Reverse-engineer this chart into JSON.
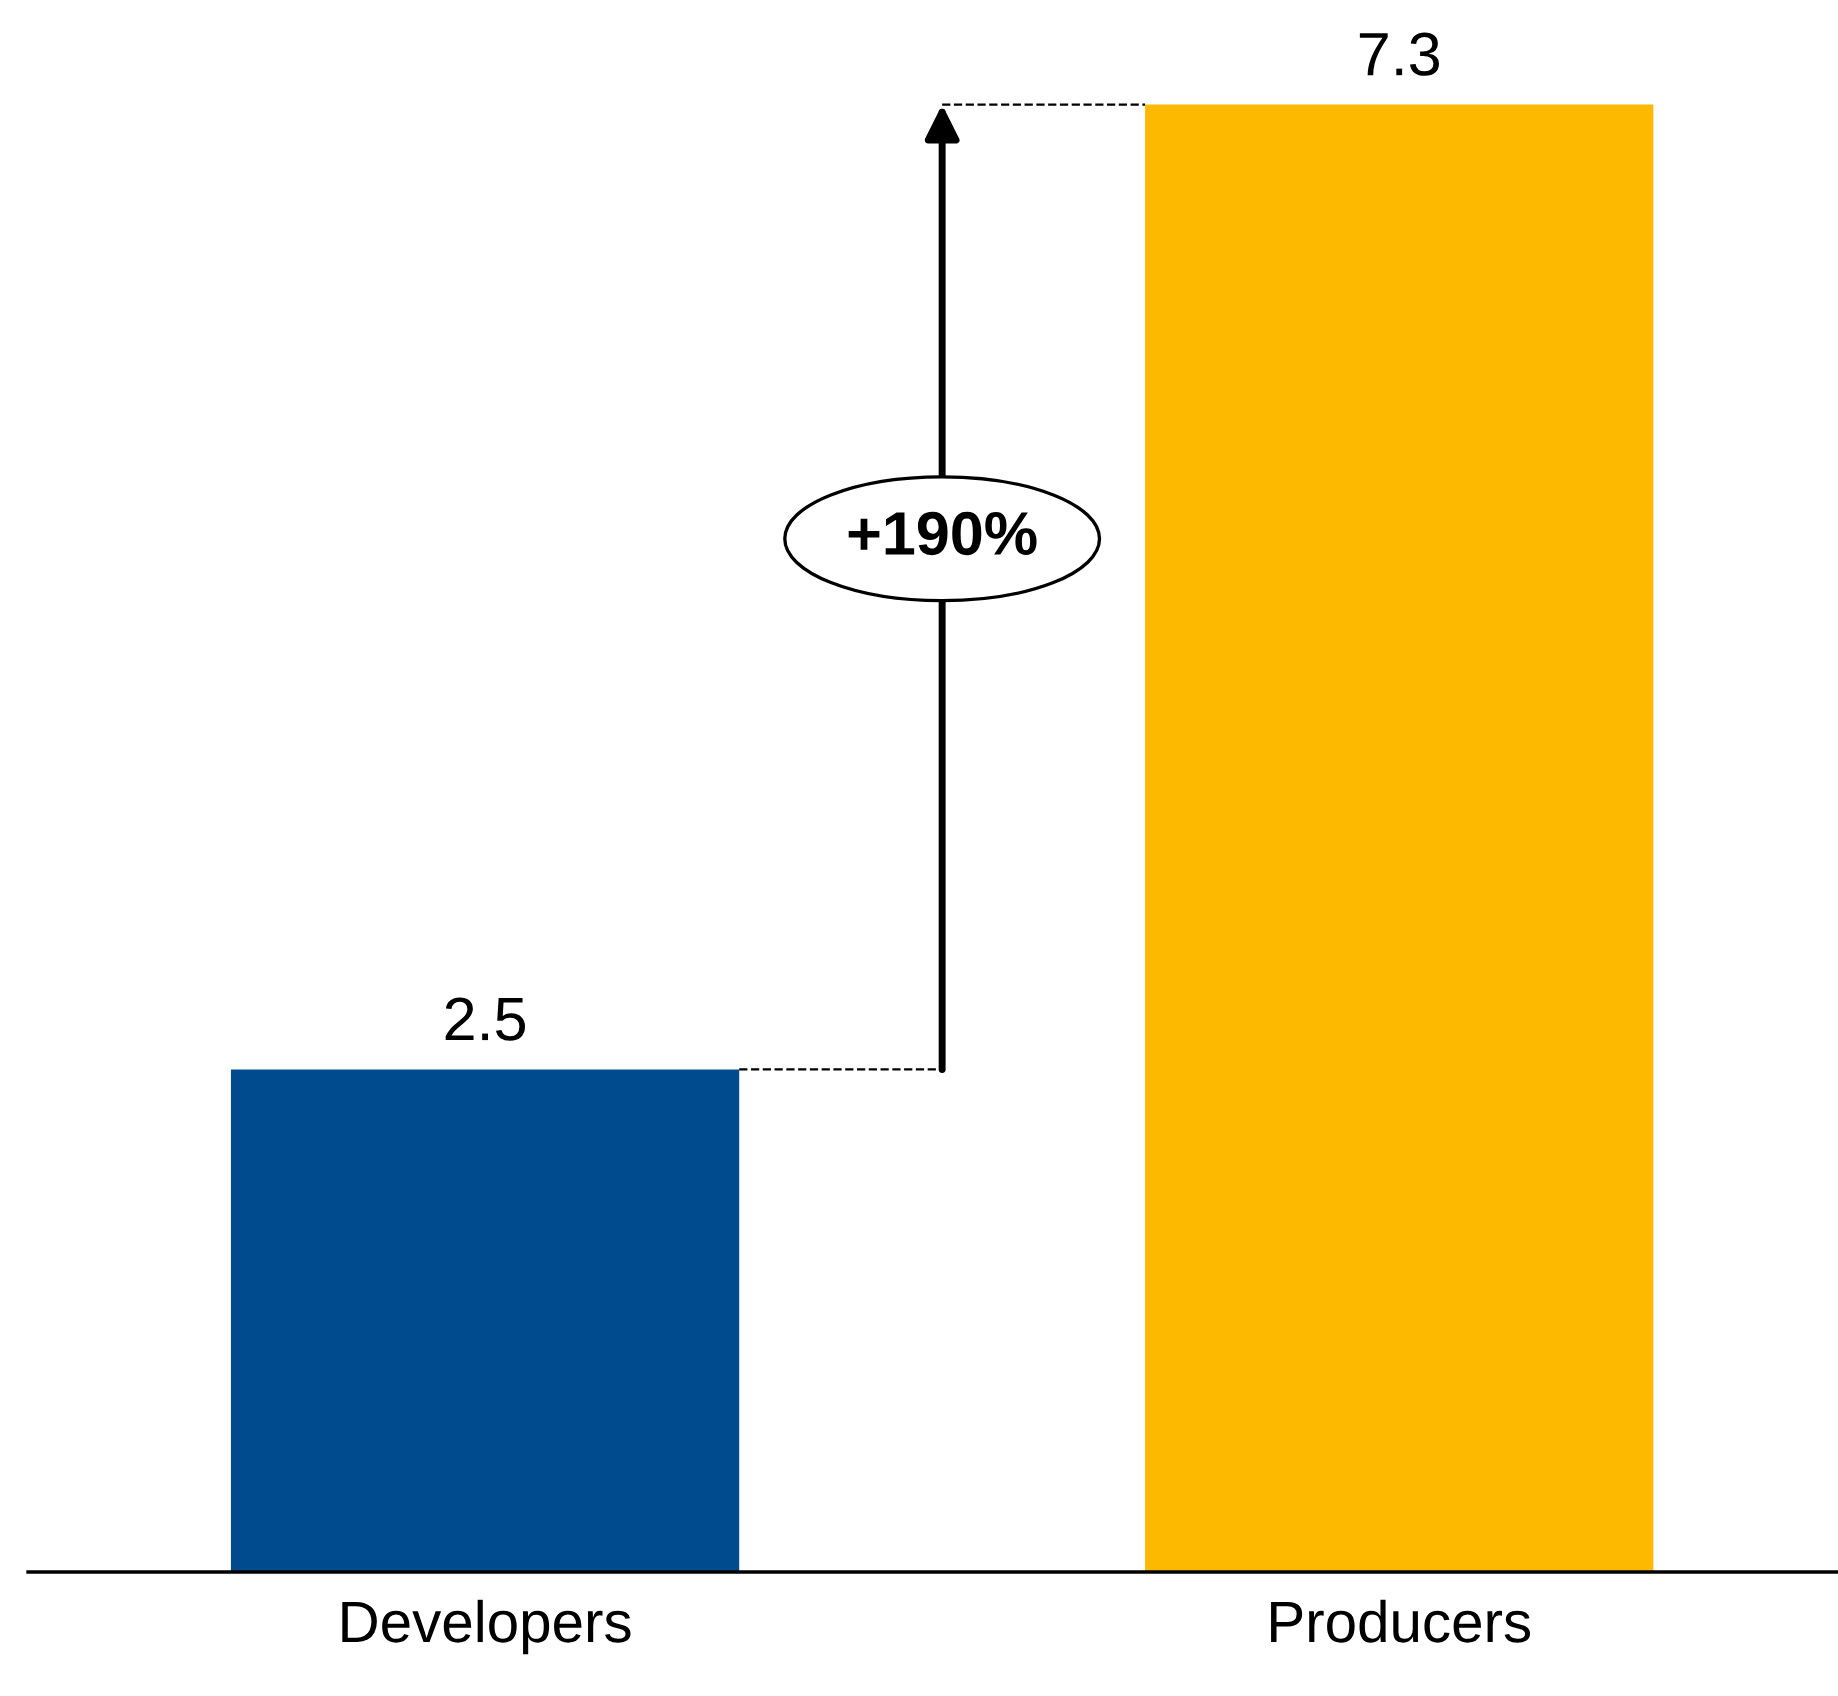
{
  "chart_data": {
    "type": "bar",
    "categories": [
      "Developers",
      "Producers"
    ],
    "values": [
      2.5,
      7.3
    ],
    "colors": [
      "#004b8d",
      "#fdb900"
    ],
    "data_labels": true,
    "annotations": [
      "+190%"
    ],
    "tick_labels": "x"
  }
}
